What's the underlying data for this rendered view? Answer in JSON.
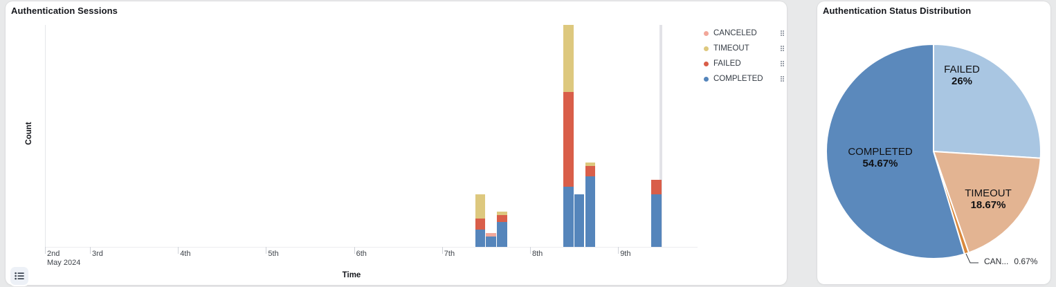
{
  "left_panel": {
    "title": "Authentication Sessions",
    "x_axis_label": "Time",
    "y_axis_label": "Count",
    "x_first_tick": {
      "day": "2nd",
      "month": "May 2024"
    },
    "legend": [
      {
        "label": "CANCELED",
        "color": "#f2a79a"
      },
      {
        "label": "TIMEOUT",
        "color": "#ddc87e"
      },
      {
        "label": "FAILED",
        "color": "#d95e49"
      },
      {
        "label": "COMPLETED",
        "color": "#5585bb"
      }
    ],
    "legend_toggle_icon": "list-icon"
  },
  "right_panel": {
    "title": "Authentication Status Distribution"
  },
  "chart_data": [
    {
      "type": "bar",
      "title": "Authentication Sessions",
      "xlabel": "Time",
      "ylabel": "Count",
      "stacked": true,
      "grid": false,
      "legend_position": "top-right",
      "ylim": [
        0,
        63
      ],
      "x_ticks": [
        {
          "label": "3rd",
          "day": 3
        },
        {
          "label": "4th",
          "day": 4
        },
        {
          "label": "5th",
          "day": 5
        },
        {
          "label": "6th",
          "day": 6
        },
        {
          "label": "7th",
          "day": 7
        },
        {
          "label": "8th",
          "day": 8
        },
        {
          "label": "9th",
          "day": 9
        }
      ],
      "x_start_label": "2nd May 2024",
      "bin_hours": 3,
      "categories": [
        "May 7 09:00",
        "May 7 12:00",
        "May 7 15:00",
        "May 8 09:00",
        "May 8 12:00",
        "May 8 15:00",
        "May 9 09:00"
      ],
      "x_positions": [
        {
          "day": 7,
          "hour": 9
        },
        {
          "day": 7,
          "hour": 12
        },
        {
          "day": 7,
          "hour": 15
        },
        {
          "day": 8,
          "hour": 9
        },
        {
          "day": 8,
          "hour": 12
        },
        {
          "day": 8,
          "hour": 15
        },
        {
          "day": 9,
          "hour": 9
        }
      ],
      "series": [
        {
          "name": "COMPLETED",
          "color": "#5585bb",
          "values": [
            5,
            3,
            7,
            17,
            15,
            20,
            15
          ]
        },
        {
          "name": "FAILED",
          "color": "#d95e49",
          "values": [
            3,
            0,
            2,
            27,
            0,
            3,
            4
          ]
        },
        {
          "name": "TIMEOUT",
          "color": "#ddc87e",
          "values": [
            7,
            0,
            1,
            19,
            0,
            1,
            0
          ]
        },
        {
          "name": "CANCELED",
          "color": "#f2a79a",
          "values": [
            0,
            1,
            0,
            0,
            0,
            0,
            0
          ]
        }
      ],
      "marker": {
        "day": 9,
        "hour": 11.6
      }
    },
    {
      "type": "pie",
      "title": "Authentication Status Distribution",
      "start_angle": "top",
      "direction": "clockwise",
      "slices": [
        {
          "label": "FAILED",
          "pct": 26,
          "display": "26%",
          "color": "#a9c6e2"
        },
        {
          "label": "TIMEOUT",
          "pct": 18.67,
          "display": "18.67%",
          "color": "#e3b492"
        },
        {
          "label": "CANCELED",
          "pct": 0.67,
          "display": "0.67%",
          "display_label": "CAN...",
          "color": "#d9883c"
        },
        {
          "label": "COMPLETED",
          "pct": 54.67,
          "display": "54.67%",
          "color": "#5b89bc"
        }
      ]
    }
  ]
}
